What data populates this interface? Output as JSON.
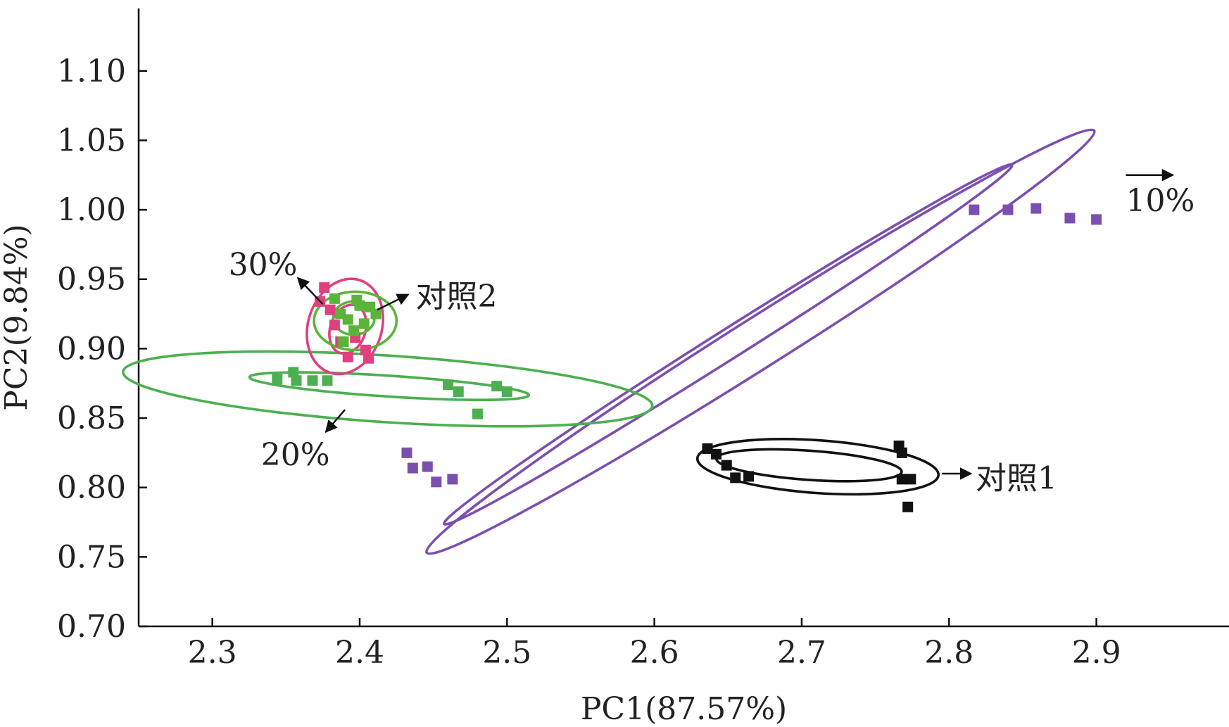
{
  "chart_data": {
    "type": "scatter",
    "title": "",
    "xlabel": "PC1(87.57%)",
    "ylabel": "PC2(9.84%)",
    "xlim": [
      2.25,
      2.99
    ],
    "ylim": [
      0.7,
      1.145
    ],
    "xticks": [
      2.3,
      2.4,
      2.5,
      2.6,
      2.7,
      2.8,
      2.9
    ],
    "xtick_labels": [
      "2.3",
      "2.4",
      "2.5",
      "2.6",
      "2.7",
      "2.8",
      "2.9"
    ],
    "yticks": [
      0.7,
      0.75,
      0.8,
      0.85,
      0.9,
      0.95,
      1.0,
      1.05,
      1.1
    ],
    "ytick_labels": [
      "0.70",
      "0.75",
      "0.80",
      "0.85",
      "0.90",
      "0.95",
      "1.00",
      "1.05",
      "1.10"
    ],
    "grid": false,
    "series": [
      {
        "name": "10%",
        "color": "#7b4fb0",
        "points": [
          [
            2.432,
            0.825
          ],
          [
            2.436,
            0.814
          ],
          [
            2.446,
            0.815
          ],
          [
            2.452,
            0.804
          ],
          [
            2.463,
            0.806
          ],
          [
            2.817,
            1.0
          ],
          [
            2.84,
            1.0
          ],
          [
            2.859,
            1.001
          ],
          [
            2.882,
            0.994
          ],
          [
            2.9,
            0.993
          ]
        ],
        "ellipses": [
          {
            "cx": 2.672,
            "cy": 0.905,
            "rx": 0.268,
            "ry": 0.018,
            "angle_deg": 32.3
          },
          {
            "cx": 2.65,
            "cy": 0.903,
            "rx": 0.228,
            "ry": 0.0105,
            "angle_deg": 32.3
          }
        ]
      },
      {
        "name": "20%",
        "color": "#4caf50",
        "points": [
          [
            2.344,
            0.878
          ],
          [
            2.355,
            0.883
          ],
          [
            2.357,
            0.877
          ],
          [
            2.368,
            0.877
          ],
          [
            2.378,
            0.877
          ],
          [
            2.46,
            0.874
          ],
          [
            2.467,
            0.869
          ],
          [
            2.48,
            0.853
          ],
          [
            2.493,
            0.873
          ],
          [
            2.5,
            0.869
          ]
        ],
        "ellipses": [
          {
            "cx": 2.419,
            "cy": 0.871,
            "rx": 0.18,
            "ry": 0.024,
            "angle_deg": -3.7
          },
          {
            "cx": 2.42,
            "cy": 0.873,
            "rx": 0.095,
            "ry": 0.0075,
            "angle_deg": -3.7
          }
        ]
      },
      {
        "name": "30%",
        "color": "#e0407e",
        "points": [
          [
            2.373,
            0.934
          ],
          [
            2.376,
            0.944
          ],
          [
            2.38,
            0.928
          ],
          [
            2.383,
            0.917
          ],
          [
            2.387,
            0.905
          ],
          [
            2.392,
            0.894
          ],
          [
            2.397,
            0.908
          ],
          [
            2.404,
            0.899
          ],
          [
            2.406,
            0.893
          ]
        ],
        "ellipses": [
          {
            "cx": 2.39,
            "cy": 0.916,
            "rx": 0.025,
            "ry": 0.035,
            "angle_deg": -18
          },
          {
            "cx": 2.392,
            "cy": 0.914,
            "rx": 0.012,
            "ry": 0.018,
            "angle_deg": -18
          }
        ]
      },
      {
        "name": "对照2",
        "color": "#5ab43a",
        "points": [
          [
            2.383,
            0.936
          ],
          [
            2.387,
            0.925
          ],
          [
            2.392,
            0.921
          ],
          [
            2.396,
            0.913
          ],
          [
            2.4,
            0.931
          ],
          [
            2.403,
            0.918
          ],
          [
            2.407,
            0.93
          ],
          [
            2.411,
            0.925
          ],
          [
            2.389,
            0.905
          ],
          [
            2.398,
            0.935
          ]
        ],
        "ellipses": [
          {
            "cx": 2.397,
            "cy": 0.92,
            "rx": 0.028,
            "ry": 0.021,
            "angle_deg": 0
          },
          {
            "cx": 2.396,
            "cy": 0.922,
            "rx": 0.014,
            "ry": 0.012,
            "angle_deg": 0
          }
        ]
      },
      {
        "name": "对照1",
        "color": "#111111",
        "points": [
          [
            2.636,
            0.828
          ],
          [
            2.642,
            0.824
          ],
          [
            2.649,
            0.816
          ],
          [
            2.655,
            0.807
          ],
          [
            2.664,
            0.808
          ],
          [
            2.766,
            0.83
          ],
          [
            2.768,
            0.825
          ],
          [
            2.768,
            0.806
          ],
          [
            2.772,
            0.786
          ],
          [
            2.774,
            0.806
          ]
        ],
        "ellipses": [
          {
            "cx": 2.711,
            "cy": 0.815,
            "rx": 0.082,
            "ry": 0.019,
            "angle_deg": -4
          },
          {
            "cx": 2.705,
            "cy": 0.816,
            "rx": 0.063,
            "ry": 0.0105,
            "angle_deg": -4
          }
        ]
      }
    ],
    "annotations": [
      {
        "text": "10%",
        "series": "10%",
        "arrow_from": [
          2.92,
          1.025
        ],
        "arrow_to": [
          2.952,
          1.025
        ],
        "text_at": [
          2.92,
          0.999
        ]
      },
      {
        "text": "20%",
        "series": "20%",
        "arrow_from": [
          2.39,
          0.856
        ],
        "arrow_to": [
          2.377,
          0.84
        ],
        "text_at": [
          2.333,
          0.816
        ]
      },
      {
        "text": "30%",
        "series": "30%",
        "arrow_from": [
          2.375,
          0.932
        ],
        "arrow_to": [
          2.358,
          0.951
        ],
        "text_at": [
          2.311,
          0.953
        ]
      },
      {
        "text": "对照2",
        "series": "对照2",
        "arrow_from": [
          2.412,
          0.928
        ],
        "arrow_to": [
          2.433,
          0.939
        ],
        "text_at": [
          2.438,
          0.93
        ]
      },
      {
        "text": "对照1",
        "series": "对照1",
        "arrow_from": [
          2.795,
          0.81
        ],
        "arrow_to": [
          2.815,
          0.81
        ],
        "text_at": [
          2.818,
          0.799
        ]
      }
    ]
  }
}
